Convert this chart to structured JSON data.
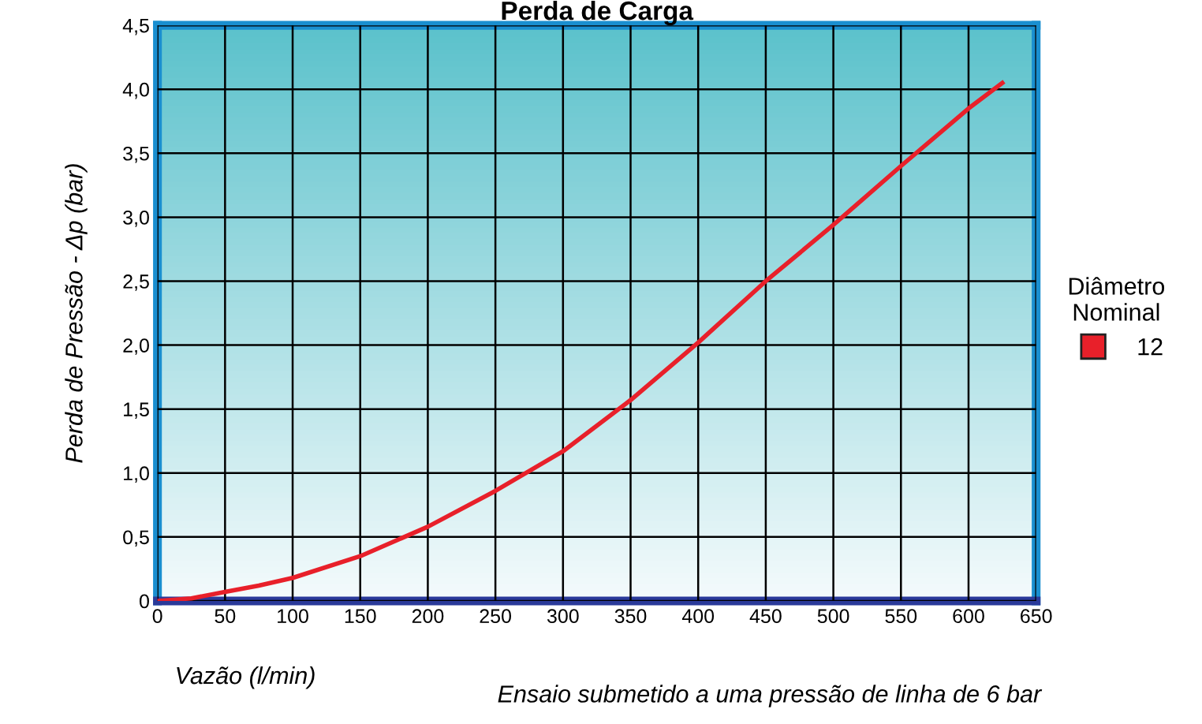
{
  "chart_data": {
    "type": "line",
    "title": "Perda de Carga",
    "xlabel": "Vazão (l/min)",
    "ylabel": "Perda de Pressão - Δp (bar)",
    "legend_title": "Diâmetro\nNominal",
    "annotations": [
      "Ensaio submetido a uma pressão de linha de 6 bar"
    ],
    "series": [
      {
        "name": "12",
        "color": "#e8202a",
        "x": [
          0,
          25,
          50,
          75,
          100,
          150,
          200,
          250,
          300,
          350,
          400,
          450,
          500,
          550,
          600,
          625
        ],
        "values": [
          0,
          0.02,
          0.07,
          0.12,
          0.18,
          0.35,
          0.58,
          0.86,
          1.17,
          1.57,
          2.02,
          2.5,
          2.94,
          3.4,
          3.85,
          4.05
        ]
      }
    ],
    "xlim": [
      0,
      650
    ],
    "xticks": [
      0,
      50,
      100,
      150,
      200,
      250,
      300,
      350,
      400,
      450,
      500,
      550,
      600,
      650
    ],
    "ylim": [
      0,
      4.5
    ],
    "yticks": [
      0,
      {
        "value": 0.5,
        "label": "0,5"
      },
      {
        "value": 1,
        "label": "1,0"
      },
      {
        "value": 1.5,
        "label": "1,5"
      },
      {
        "value": 2,
        "label": "2,0"
      },
      {
        "value": 2.5,
        "label": "2,5"
      },
      {
        "value": 3,
        "label": "3,0"
      },
      {
        "value": 3.5,
        "label": "3,5"
      },
      {
        "value": 4,
        "label": "4,0"
      },
      {
        "value": 4.5,
        "label": "4,5"
      }
    ],
    "grid": true,
    "legend": "right"
  }
}
